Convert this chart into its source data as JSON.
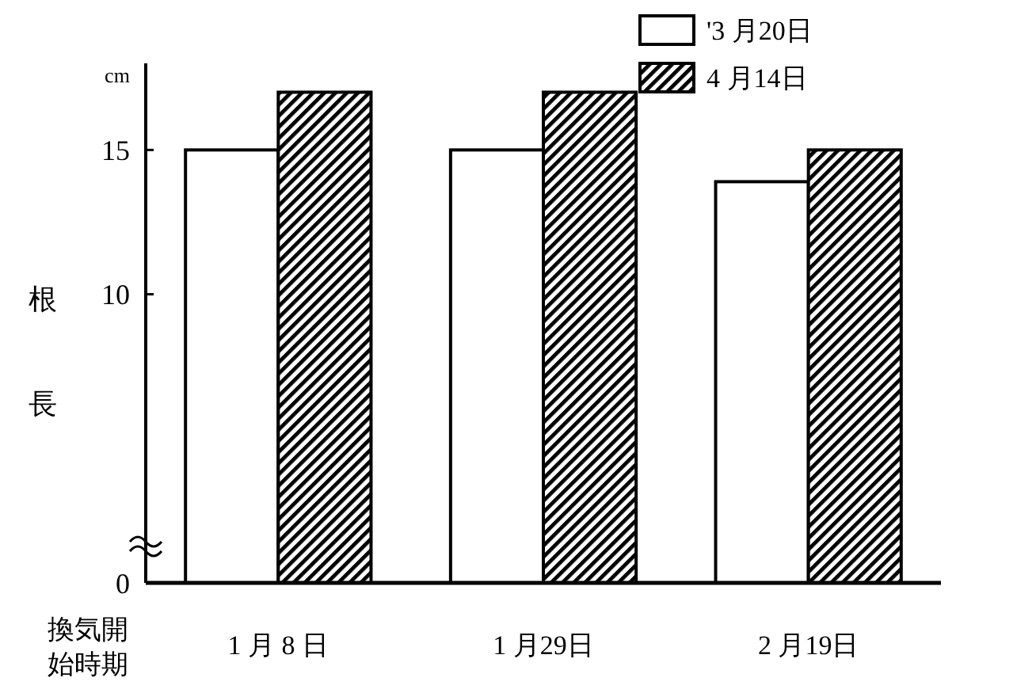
{
  "chart_data": {
    "type": "bar",
    "ylabel": "根長",
    "xlabel": "換気開始時期",
    "annotations": [
      "cm"
    ],
    "categories": [
      "1 月 8 日",
      "1 月29日",
      "2 月19日"
    ],
    "series": [
      {
        "name": "'3 月20日",
        "color": "#ffffff",
        "values": [
          15.0,
          15.0,
          13.9
        ]
      },
      {
        "name": "4 月14日",
        "color": "#000000",
        "values": [
          17.0,
          17.0,
          15.0
        ]
      }
    ],
    "ylim": [
      0,
      18
    ],
    "yticks": [
      0,
      10,
      15
    ],
    "legend": "top right",
    "grid": false
  }
}
